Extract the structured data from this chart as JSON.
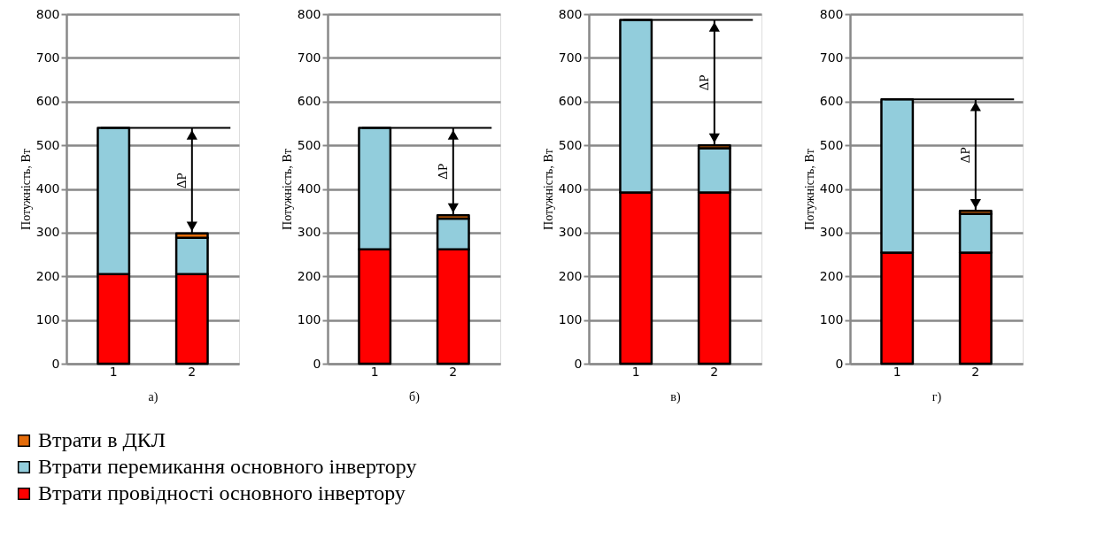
{
  "chart_data": [
    {
      "type": "bar",
      "stacked": true,
      "xlabel": "а)",
      "ylabel": "Потужність, Вт",
      "categories": [
        "1",
        "2"
      ],
      "ylim": [
        0,
        800
      ],
      "yticks": [
        0,
        100,
        200,
        300,
        400,
        500,
        600,
        700,
        800
      ],
      "grid": "y",
      "legend": "bottom",
      "series": [
        {
          "name": "Втрати провідності основного інвертору",
          "color": "#ff0000",
          "values": [
            205,
            205
          ]
        },
        {
          "name": "Втрати перемикання основного інвертору",
          "color": "#92cddc",
          "values": [
            335,
            83
          ]
        },
        {
          "name": "Втрати в ДКЛ",
          "color": "#e46c0a",
          "values": [
            null,
            10
          ]
        }
      ],
      "ref_lines": [
        {
          "axis": "y",
          "value": 540
        }
      ],
      "annotations": [
        "ΔP"
      ]
    },
    {
      "type": "bar",
      "stacked": true,
      "xlabel": "б)",
      "ylabel": "Потужність, Вт",
      "categories": [
        "1",
        "2"
      ],
      "ylim": [
        0,
        800
      ],
      "yticks": [
        0,
        100,
        200,
        300,
        400,
        500,
        600,
        700,
        800
      ],
      "grid": "y",
      "legend": false,
      "series": [
        {
          "name": "Втрати провідності основного інвертору",
          "color": "#ff0000",
          "values": [
            262,
            262
          ]
        },
        {
          "name": "Втрати перемикання основного інвертору",
          "color": "#92cddc",
          "values": [
            278,
            70
          ]
        },
        {
          "name": "Втрати в ДКЛ",
          "color": "#e46c0a",
          "values": [
            null,
            8
          ]
        }
      ],
      "ref_lines": [
        {
          "axis": "y",
          "value": 540
        }
      ],
      "annotations": [
        "ΔP"
      ]
    },
    {
      "type": "bar",
      "stacked": true,
      "xlabel": "в)",
      "ylabel": "Потужність, Вт",
      "categories": [
        "1",
        "2"
      ],
      "ylim": [
        0,
        800
      ],
      "yticks": [
        0,
        100,
        200,
        300,
        400,
        500,
        600,
        700,
        800
      ],
      "grid": "y",
      "legend": false,
      "series": [
        {
          "name": "Втрати провідності основного інвертору",
          "color": "#ff0000",
          "values": [
            392,
            392
          ]
        },
        {
          "name": "Втрати перемикання основного інвертору",
          "color": "#92cddc",
          "values": [
            395,
            101
          ]
        },
        {
          "name": "Втрати в ДКЛ",
          "color": "#e46c0a",
          "values": [
            null,
            7
          ]
        }
      ],
      "ref_lines": [
        {
          "axis": "y",
          "value": 787
        }
      ],
      "annotations": [
        "ΔP"
      ]
    },
    {
      "type": "bar",
      "stacked": true,
      "xlabel": "г)",
      "ylabel": "Потужність, Вт",
      "categories": [
        "1",
        "2"
      ],
      "ylim": [
        0,
        800
      ],
      "yticks": [
        0,
        100,
        200,
        300,
        400,
        500,
        600,
        700,
        800
      ],
      "grid": "y",
      "legend": false,
      "series": [
        {
          "name": "Втрати провідності основного інвертору",
          "color": "#ff0000",
          "values": [
            254,
            254
          ]
        },
        {
          "name": "Втрати перемикання основного інвертору",
          "color": "#92cddc",
          "values": [
            351,
            89
          ]
        },
        {
          "name": "Втрати в ДКЛ",
          "color": "#e46c0a",
          "values": [
            null,
            7
          ]
        }
      ],
      "ref_lines": [
        {
          "axis": "y",
          "value": 605
        }
      ],
      "annotations": [
        "ΔP"
      ]
    }
  ]
}
